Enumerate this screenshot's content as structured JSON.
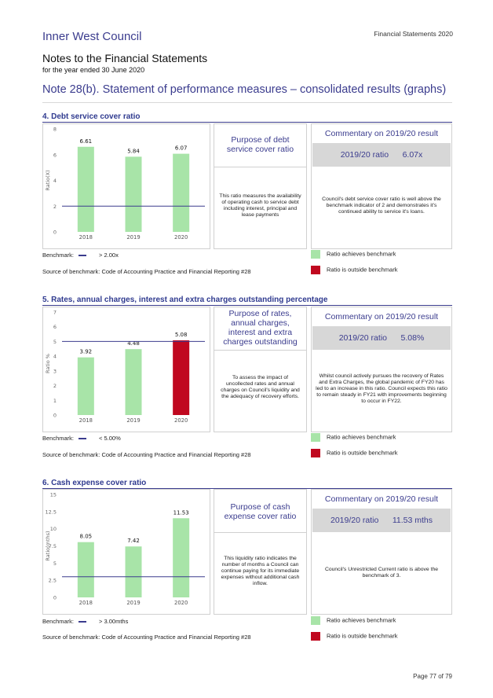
{
  "header": {
    "council": "Inner West Council",
    "fs_label": "Financial Statements 2020",
    "notes_title": "Notes to the Financial Statements",
    "notes_subtitle": "for the year ended 30 June 2020",
    "note_heading": "Note 28(b). Statement of performance measures – consolidated results (graphs)"
  },
  "colors": {
    "achieves": "#a8e4a8",
    "outside": "#c0081f",
    "benchmark_line": "#3b3c8e",
    "accent": "#3b3c8e"
  },
  "legend": {
    "achieves": "Ratio achieves benchmark",
    "outside": "Ratio is outside benchmark"
  },
  "sections": [
    {
      "title": "4. Debt service cover ratio",
      "purpose_title": "Purpose of debt service cover ratio",
      "purpose_text": "This ratio measures the availability of operating cash to service debt including interest, principal and lease payments",
      "commentary_title": "Commentary on 2019/20 result",
      "ratio_label": "2019/20 ratio",
      "ratio_value": "6.07x",
      "commentary_text": "Council's debt service cover ratio is well above the benchmark indicator of 2 and demonstrates it's continued ability to service it's loans.",
      "benchmark_label": "Benchmark:",
      "benchmark_value": "> 2.00x",
      "source": "Source of benchmark: Code of Accounting Practice and Financial Reporting #28"
    },
    {
      "title": "5. Rates, annual charges, interest and extra charges outstanding percentage",
      "purpose_title": "Purpose of rates, annual charges, interest and extra charges outstanding",
      "purpose_text": "To assess the impact of uncollected rates and annual charges on Council's liquidity and the adequacy of recovery efforts.",
      "commentary_title": "Commentary on 2019/20 result",
      "ratio_label": "2019/20 ratio",
      "ratio_value": "5.08%",
      "commentary_text": "Whilst council actively pursues the recovery of Rates and Extra Charges, the global pandemic of FY20 has led to an increase in this ratio. Council expects this ratio to remain steady in FY21 with improvements beginning to occur in FY22.",
      "benchmark_label": "Benchmark:",
      "benchmark_value": "< 5.00%",
      "source": "Source of benchmark: Code of Accounting Practice and Financial Reporting #28"
    },
    {
      "title": "6. Cash expense cover ratio",
      "purpose_title": "Purpose of cash expense cover ratio",
      "purpose_text": "This liquidity ratio indicates the number of months a Council can continue paying for its immediate expenses without additional cash inflow.",
      "commentary_title": "Commentary on 2019/20 result",
      "ratio_label": "2019/20 ratio",
      "ratio_value": "11.53 mths",
      "commentary_text": "Council's Unrestricted Current ratio is above the benchmark of 3.",
      "benchmark_label": "Benchmark:",
      "benchmark_value": "> 3.00mths",
      "source": "Source of benchmark: Code of Accounting Practice and Financial Reporting #28"
    }
  ],
  "chart_data": [
    {
      "type": "bar",
      "categories": [
        "2018",
        "2019",
        "2020"
      ],
      "values": [
        6.61,
        5.84,
        6.07
      ],
      "value_labels": [
        "6.61",
        "5.84",
        "6.07"
      ],
      "status": [
        "achieves",
        "achieves",
        "achieves"
      ],
      "ylabel": "Ratio(X)",
      "ylim": [
        0,
        8
      ],
      "yticks": [
        0,
        2,
        4,
        6,
        8
      ],
      "ytick_labels": [
        "0",
        "2",
        "4",
        "6",
        "8"
      ],
      "benchmark": 2
    },
    {
      "type": "bar",
      "categories": [
        "2018",
        "2019",
        "2020"
      ],
      "values": [
        3.92,
        4.48,
        5.08
      ],
      "value_labels": [
        "3.92",
        "4.48",
        "5.08"
      ],
      "status": [
        "achieves",
        "achieves",
        "outside"
      ],
      "ylabel": "Ratio %",
      "ylim": [
        0,
        7
      ],
      "yticks": [
        0,
        1,
        2,
        3,
        4,
        5,
        6,
        7
      ],
      "ytick_labels": [
        "0",
        "1",
        "2",
        "3",
        "4",
        "5",
        "6",
        "7"
      ],
      "benchmark": 5
    },
    {
      "type": "bar",
      "categories": [
        "2018",
        "2019",
        "2020"
      ],
      "values": [
        8.05,
        7.42,
        11.53
      ],
      "value_labels": [
        "8.05",
        "7.42",
        "11.53"
      ],
      "status": [
        "achieves",
        "achieves",
        "achieves"
      ],
      "ylabel": "Ratio(mths)",
      "ylim": [
        0,
        15
      ],
      "yticks": [
        0,
        2.5,
        5,
        7.5,
        10,
        12.5,
        15
      ],
      "ytick_labels": [
        "0",
        "2.5",
        "5",
        "7.5",
        "10",
        "12.5",
        "15"
      ],
      "benchmark": 3
    }
  ],
  "footer": {
    "page": "Page 77 of 79"
  }
}
